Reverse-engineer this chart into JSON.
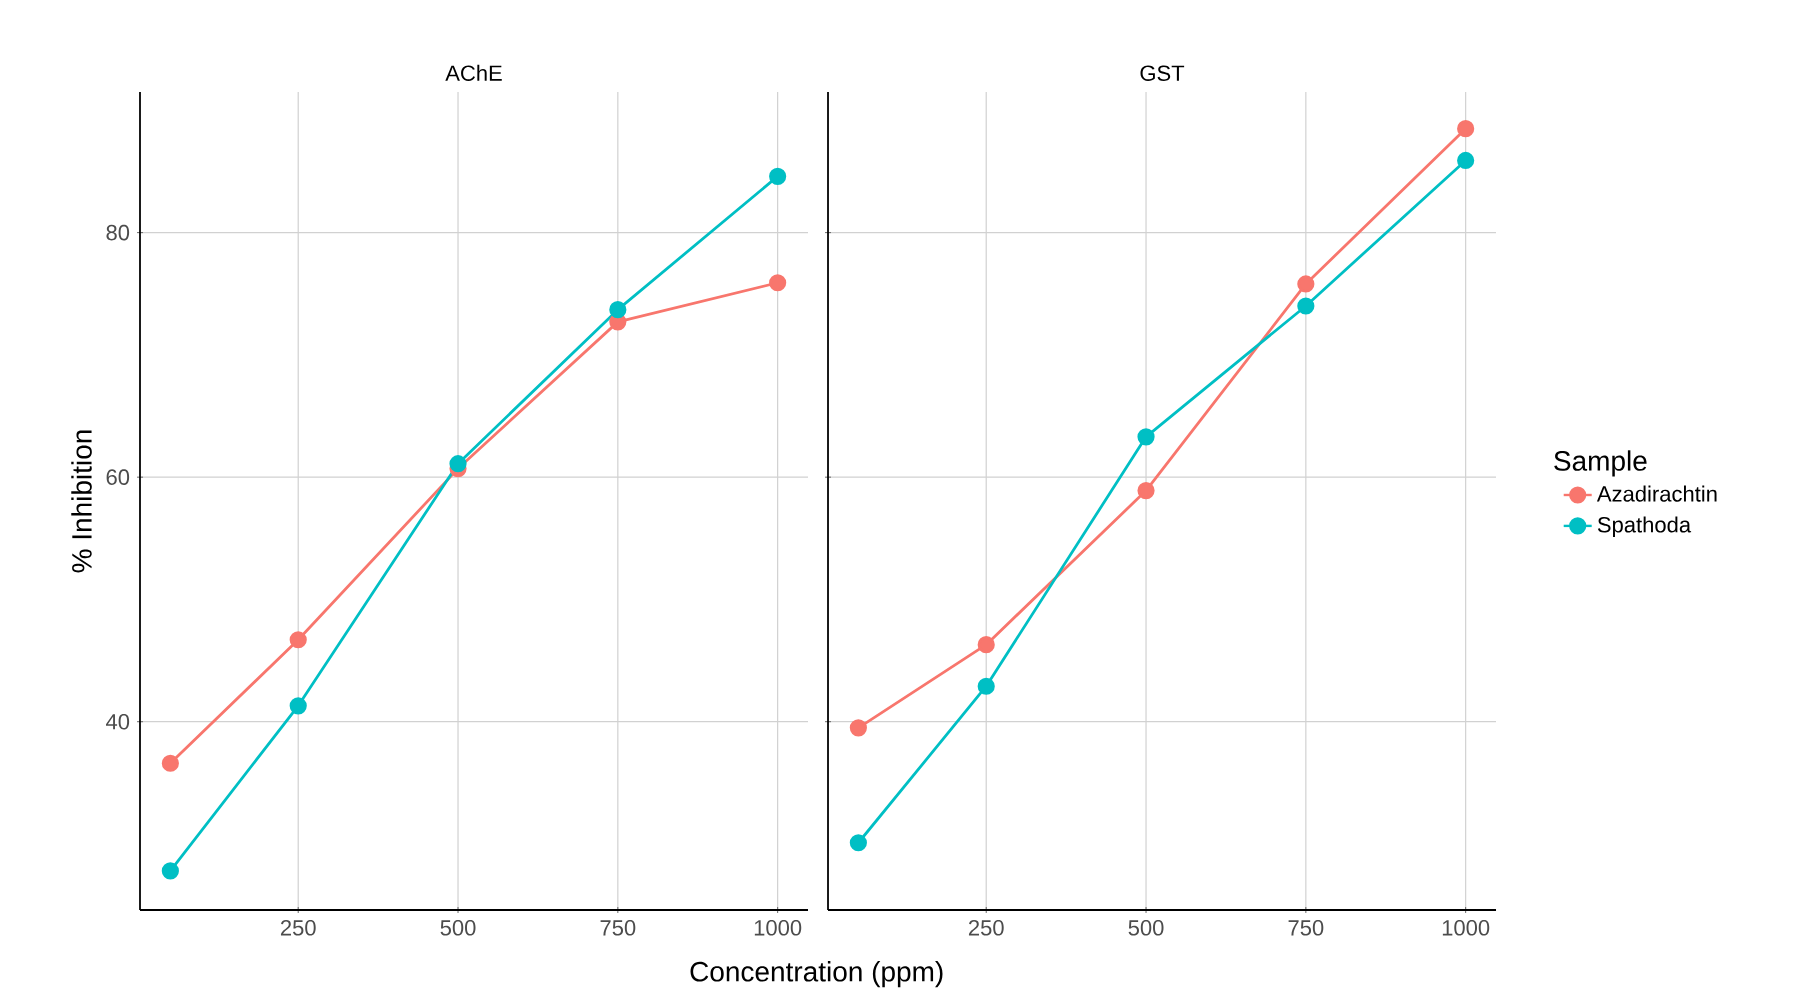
{
  "chart_data": [
    {
      "type": "line",
      "title": "AChE",
      "xlabel": "Concentration (ppm)",
      "ylabel": "% Inhibition",
      "x": [
        50,
        250,
        500,
        750,
        1000
      ],
      "series": [
        {
          "color": "#f8766d",
          "values": [
            36.6,
            46.7,
            60.7,
            72.7,
            75.9
          ]
        },
        {
          "color": "#00bfc4",
          "values": [
            27.8,
            41.3,
            61.1,
            73.7,
            84.6
          ]
        }
      ],
      "xlim": [
        2.5,
        1047.5
      ],
      "ylim": [
        24.6,
        91.5
      ],
      "xticks": [
        250,
        500,
        750,
        1000
      ],
      "yticks": [
        40,
        60,
        80
      ],
      "grid": true,
      "marker": "circle",
      "line_style": "solid"
    },
    {
      "type": "line",
      "title": "GST",
      "legend_title": "Sample",
      "x": [
        50,
        250,
        500,
        750,
        1000
      ],
      "series": [
        {
          "name": "Azadirachtin",
          "color": "#f8766d",
          "values": [
            39.5,
            46.3,
            58.9,
            75.8,
            88.5
          ]
        },
        {
          "name": "Spathoda",
          "color": "#00bfc4",
          "values": [
            30.1,
            42.9,
            63.3,
            74.0,
            85.9
          ]
        }
      ],
      "xlim": [
        2.5,
        1047.5
      ],
      "ylim": [
        24.6,
        91.5
      ],
      "xticks": [
        250,
        500,
        750,
        1000
      ],
      "yticks": [
        40,
        60,
        80
      ],
      "grid": true,
      "marker": "circle",
      "line_style": "solid",
      "legend": "right",
      "tick_labels": "x"
    }
  ]
}
